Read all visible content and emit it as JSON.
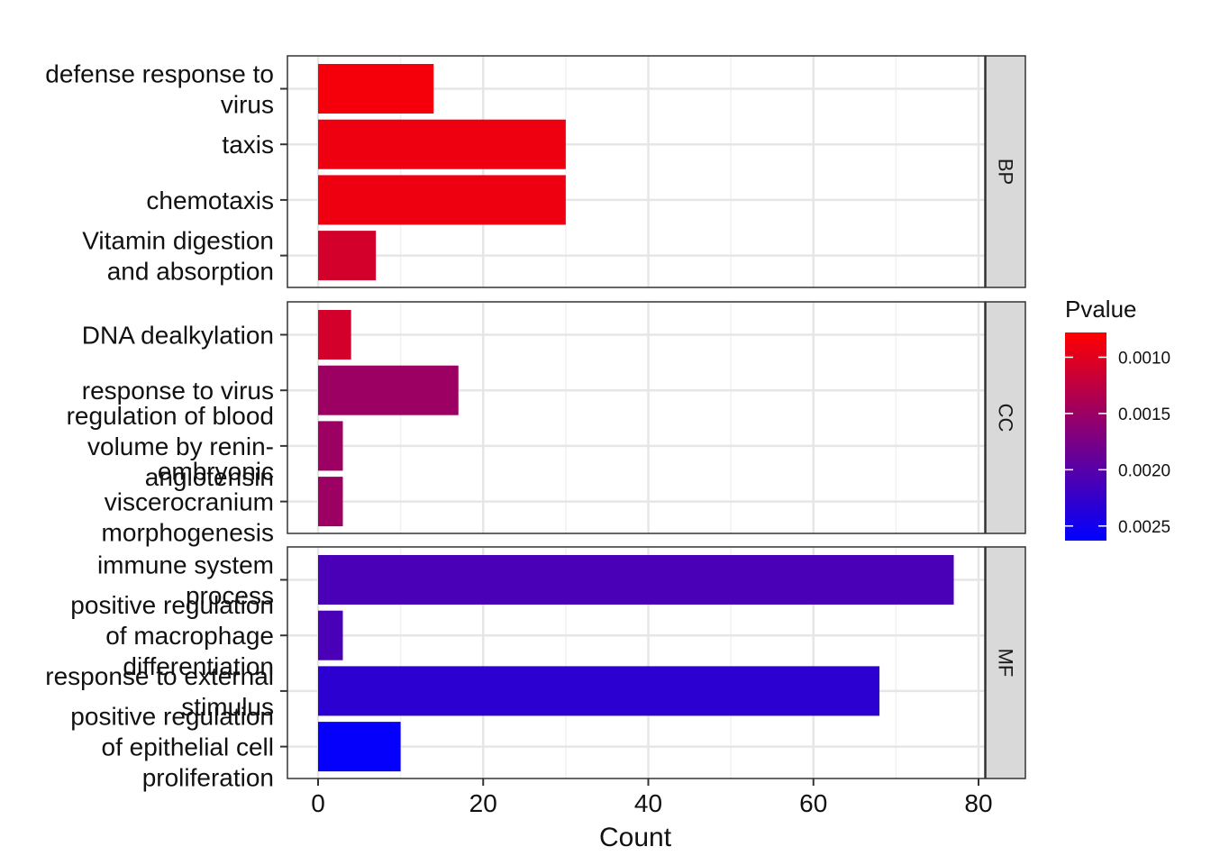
{
  "chart_data": {
    "type": "bar",
    "orientation": "horizontal",
    "xlabel": "Count",
    "xlim": [
      0,
      80
    ],
    "x_ticks": [
      "0",
      "20",
      "40",
      "60",
      "80"
    ],
    "grid": true,
    "legend": {
      "title": "Pvalue",
      "position": "right",
      "ticks": [
        "0.0010",
        "0.0015",
        "0.0020",
        "0.0025"
      ],
      "tick_values": [
        0.001,
        0.0015,
        0.002,
        0.0025
      ],
      "range": [
        0.00078,
        0.00263
      ],
      "low_color": "#ff0000",
      "high_color": "#0000ff"
    },
    "panels": [
      {
        "name": "BP",
        "bars": [
          {
            "label": "defense response to virus",
            "lines": [
              "defense response to",
              "virus"
            ],
            "count": 14,
            "pvalue": 0.00085
          },
          {
            "label": "taxis",
            "lines": [
              "taxis"
            ],
            "count": 30,
            "pvalue": 0.0009
          },
          {
            "label": "chemotaxis",
            "lines": [
              "chemotaxis"
            ],
            "count": 30,
            "pvalue": 0.0009
          },
          {
            "label": "Vitamin digestion and absorption",
            "lines": [
              "Vitamin digestion",
              "and absorption"
            ],
            "count": 7,
            "pvalue": 0.0011
          }
        ]
      },
      {
        "name": "CC",
        "bars": [
          {
            "label": "DNA dealkylation",
            "lines": [
              "DNA dealkylation"
            ],
            "count": 4,
            "pvalue": 0.0011
          },
          {
            "label": "response to virus",
            "lines": [
              "response to virus"
            ],
            "count": 17,
            "pvalue": 0.0015
          },
          {
            "label": "regulation of blood volume by renin-angiotensin",
            "lines": [
              "regulation of blood",
              "volume by renin-",
              "angiotensin"
            ],
            "count": 3,
            "pvalue": 0.0015
          },
          {
            "label": "embryonic viscerocranium morphogenesis",
            "lines": [
              "embryonic",
              "viscerocranium",
              "morphogenesis"
            ],
            "count": 3,
            "pvalue": 0.0015
          }
        ]
      },
      {
        "name": "MF",
        "bars": [
          {
            "label": "immune system process",
            "lines": [
              "immune system",
              "process"
            ],
            "count": 77,
            "pvalue": 0.0021
          },
          {
            "label": "positive regulation of macrophage differentiation",
            "lines": [
              "positive regulation",
              "of macrophage",
              "differentiation"
            ],
            "count": 3,
            "pvalue": 0.0021
          },
          {
            "label": "response to external stimulus",
            "lines": [
              "response to external",
              "stimulus"
            ],
            "count": 68,
            "pvalue": 0.0023
          },
          {
            "label": "positive regulation of epithelial cell proliferation",
            "lines": [
              "positive regulation",
              "of epithelial cell",
              "proliferation"
            ],
            "count": 10,
            "pvalue": 0.0026
          }
        ]
      }
    ]
  }
}
